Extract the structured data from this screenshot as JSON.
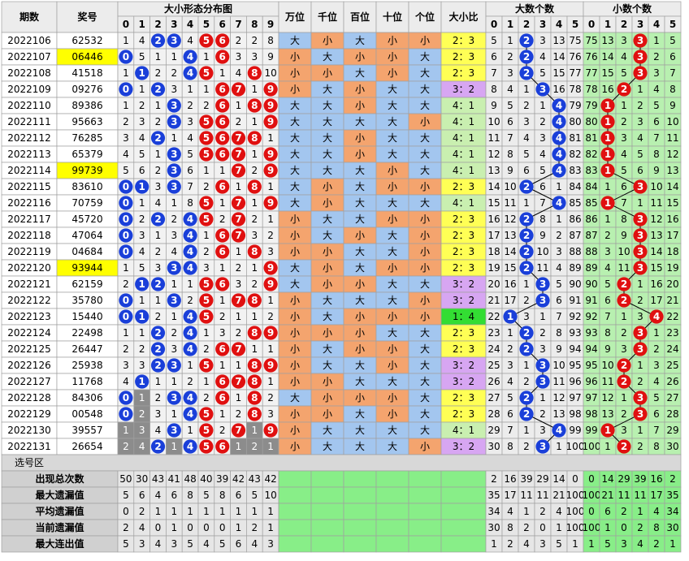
{
  "header": {
    "period": "期数",
    "number": "奖号",
    "dist": "大小形态分布图",
    "dist_cols": [
      0,
      1,
      2,
      3,
      4,
      5,
      6,
      7,
      8,
      9
    ],
    "positions": [
      "万位",
      "千位",
      "百位",
      "十位",
      "个位"
    ],
    "ratio": "大小比",
    "big": "大数个数",
    "big_cols": [
      0,
      1,
      2,
      3,
      4,
      5
    ],
    "small": "小数个数",
    "small_cols": [
      0,
      1,
      2,
      3,
      4,
      5
    ]
  },
  "rows": [
    {
      "period": "2022106",
      "number": "62532",
      "dist": [
        1,
        4,
        2,
        3,
        4,
        5,
        6,
        2,
        2,
        8
      ],
      "pos": [
        "大",
        "小",
        "大",
        "小",
        "小"
      ],
      "ratio": "2：3",
      "big": [
        5,
        1,
        2,
        3,
        13,
        75
      ],
      "big_hit": 2,
      "small": [
        75,
        13,
        3,
        3,
        1,
        5
      ],
      "small_hit": 3
    },
    {
      "period": "2022107",
      "number": "06446",
      "highlight": true,
      "dist": [
        0,
        5,
        1,
        1,
        4,
        1,
        6,
        3,
        3,
        9
      ],
      "pos": [
        "小",
        "大",
        "小",
        "小",
        "大"
      ],
      "ratio": "2：3",
      "big": [
        6,
        2,
        2,
        4,
        14,
        76
      ],
      "big_hit": 2,
      "small": [
        76,
        14,
        4,
        3,
        2,
        6
      ],
      "small_hit": 3
    },
    {
      "period": "2022108",
      "number": "41518",
      "dist": [
        1,
        1,
        2,
        2,
        4,
        5,
        1,
        4,
        8,
        10
      ],
      "pos": [
        "小",
        "小",
        "大",
        "小",
        "大"
      ],
      "ratio": "2：3",
      "big": [
        7,
        3,
        2,
        5,
        15,
        77
      ],
      "big_hit": 2,
      "small": [
        77,
        15,
        5,
        3,
        3,
        7
      ],
      "small_hit": 3
    },
    {
      "period": "2022109",
      "number": "09276",
      "dist": [
        0,
        1,
        2,
        3,
        1,
        1,
        6,
        7,
        1,
        9
      ],
      "pos": [
        "小",
        "大",
        "小",
        "大",
        "大"
      ],
      "ratio": "3：2",
      "big": [
        8,
        4,
        1,
        3,
        16,
        78
      ],
      "big_hit": 3,
      "small": [
        78,
        16,
        2,
        1,
        4,
        8
      ],
      "small_hit": 2
    },
    {
      "period": "2022110",
      "number": "89386",
      "dist": [
        1,
        2,
        1,
        3,
        2,
        2,
        6,
        1,
        8,
        9
      ],
      "pos": [
        "大",
        "大",
        "小",
        "大",
        "大"
      ],
      "ratio": "4：1",
      "big": [
        9,
        5,
        2,
        1,
        4,
        79
      ],
      "big_hit": 4,
      "small": [
        79,
        1,
        1,
        2,
        5,
        9
      ],
      "small_hit": 1
    },
    {
      "period": "2022111",
      "number": "95663",
      "dist": [
        2,
        3,
        2,
        3,
        3,
        5,
        6,
        2,
        1,
        9
      ],
      "pos": [
        "大",
        "大",
        "大",
        "大",
        "小"
      ],
      "ratio": "4：1",
      "big": [
        10,
        6,
        3,
        2,
        4,
        80
      ],
      "big_hit": 4,
      "small": [
        80,
        1,
        2,
        3,
        6,
        10
      ],
      "small_hit": 1
    },
    {
      "period": "2022112",
      "number": "76285",
      "dist": [
        3,
        4,
        2,
        1,
        4,
        5,
        6,
        7,
        8,
        1
      ],
      "pos": [
        "大",
        "大",
        "小",
        "大",
        "大"
      ],
      "ratio": "4：1",
      "big": [
        11,
        7,
        4,
        3,
        4,
        81
      ],
      "big_hit": 4,
      "small": [
        81,
        1,
        3,
        4,
        7,
        11
      ],
      "small_hit": 1
    },
    {
      "period": "2022113",
      "number": "65379",
      "dist": [
        4,
        5,
        1,
        3,
        5,
        5,
        6,
        7,
        1,
        9
      ],
      "pos": [
        "大",
        "大",
        "小",
        "大",
        "大"
      ],
      "ratio": "4：1",
      "big": [
        12,
        8,
        5,
        4,
        4,
        82
      ],
      "big_hit": 4,
      "small": [
        82,
        1,
        4,
        5,
        8,
        12
      ],
      "small_hit": 1
    },
    {
      "period": "2022114",
      "number": "99739",
      "highlight": true,
      "dist": [
        5,
        6,
        2,
        3,
        6,
        1,
        1,
        7,
        2,
        9
      ],
      "pos": [
        "大",
        "大",
        "大",
        "小",
        "大"
      ],
      "ratio": "4：1",
      "big": [
        13,
        9,
        6,
        5,
        4,
        83
      ],
      "big_hit": 4,
      "small": [
        83,
        1,
        5,
        6,
        9,
        13
      ],
      "small_hit": 1
    },
    {
      "period": "2022115",
      "number": "83610",
      "dist": [
        0,
        1,
        3,
        3,
        7,
        2,
        6,
        1,
        8,
        1
      ],
      "pos": [
        "大",
        "小",
        "大",
        "小",
        "小"
      ],
      "ratio": "2：3",
      "big": [
        14,
        10,
        2,
        6,
        1,
        84
      ],
      "big_hit": 2,
      "small": [
        84,
        1,
        6,
        3,
        10,
        14
      ],
      "small_hit": 3
    },
    {
      "period": "2022116",
      "number": "70759",
      "dist": [
        0,
        1,
        4,
        1,
        8,
        5,
        1,
        7,
        1,
        9
      ],
      "pos": [
        "大",
        "小",
        "大",
        "大",
        "大"
      ],
      "ratio": "4：1",
      "big": [
        15,
        11,
        1,
        7,
        4,
        85
      ],
      "big_hit": 4,
      "small": [
        85,
        1,
        7,
        1,
        11,
        15
      ],
      "small_hit": 1
    },
    {
      "period": "2022117",
      "number": "45720",
      "dist": [
        0,
        2,
        2,
        2,
        4,
        5,
        2,
        7,
        2,
        1
      ],
      "pos": [
        "小",
        "大",
        "大",
        "小",
        "小"
      ],
      "ratio": "2：3",
      "big": [
        16,
        12,
        2,
        8,
        1,
        86
      ],
      "big_hit": 2,
      "small": [
        86,
        1,
        8,
        3,
        12,
        16
      ],
      "small_hit": 3
    },
    {
      "period": "2022118",
      "number": "47064",
      "dist": [
        0,
        3,
        1,
        3,
        4,
        1,
        6,
        7,
        3,
        2
      ],
      "pos": [
        "小",
        "大",
        "小",
        "大",
        "小"
      ],
      "ratio": "2：3",
      "big": [
        17,
        13,
        2,
        9,
        2,
        87
      ],
      "big_hit": 2,
      "small": [
        87,
        2,
        9,
        3,
        13,
        17
      ],
      "small_hit": 3
    },
    {
      "period": "2022119",
      "number": "04684",
      "dist": [
        0,
        4,
        2,
        4,
        4,
        2,
        6,
        1,
        8,
        3
      ],
      "pos": [
        "小",
        "小",
        "大",
        "大",
        "小"
      ],
      "ratio": "2：3",
      "big": [
        18,
        14,
        2,
        10,
        3,
        88
      ],
      "big_hit": 2,
      "small": [
        88,
        3,
        10,
        3,
        14,
        18
      ],
      "small_hit": 3
    },
    {
      "period": "2022120",
      "number": "93944",
      "highlight": true,
      "dist": [
        1,
        5,
        3,
        3,
        4,
        3,
        1,
        2,
        1,
        9
      ],
      "pos": [
        "大",
        "小",
        "大",
        "小",
        "小"
      ],
      "ratio": "2：3",
      "big": [
        19,
        15,
        2,
        11,
        4,
        89
      ],
      "big_hit": 2,
      "small": [
        89,
        4,
        11,
        3,
        15,
        19
      ],
      "small_hit": 3
    },
    {
      "period": "2022121",
      "number": "62159",
      "dist": [
        2,
        1,
        2,
        1,
        1,
        5,
        6,
        3,
        2,
        9
      ],
      "pos": [
        "大",
        "小",
        "小",
        "大",
        "大"
      ],
      "ratio": "3：2",
      "big": [
        20,
        16,
        1,
        3,
        5,
        90
      ],
      "big_hit": 3,
      "small": [
        90,
        5,
        2,
        1,
        16,
        20
      ],
      "small_hit": 2
    },
    {
      "period": "2022122",
      "number": "35780",
      "dist": [
        0,
        1,
        1,
        3,
        2,
        5,
        1,
        7,
        8,
        1
      ],
      "pos": [
        "小",
        "大",
        "大",
        "大",
        "小"
      ],
      "ratio": "3：2",
      "big": [
        21,
        17,
        2,
        3,
        6,
        91
      ],
      "big_hit": 3,
      "small": [
        91,
        6,
        2,
        2,
        17,
        21
      ],
      "small_hit": 2
    },
    {
      "period": "2022123",
      "number": "15440",
      "dist": [
        0,
        1,
        2,
        1,
        4,
        5,
        2,
        1,
        1,
        2
      ],
      "pos": [
        "小",
        "大",
        "小",
        "小",
        "小"
      ],
      "ratio": "1：4",
      "big": [
        22,
        1,
        3,
        1,
        7,
        92
      ],
      "big_hit": 1,
      "small": [
        92,
        7,
        1,
        3,
        4,
        22
      ],
      "small_hit": 4
    },
    {
      "period": "2022124",
      "number": "22498",
      "dist": [
        1,
        1,
        2,
        2,
        4,
        1,
        3,
        2,
        8,
        9
      ],
      "pos": [
        "小",
        "小",
        "小",
        "大",
        "大"
      ],
      "ratio": "2：3",
      "big": [
        23,
        1,
        2,
        2,
        8,
        93
      ],
      "big_hit": 2,
      "small": [
        93,
        8,
        2,
        3,
        1,
        23
      ],
      "small_hit": 3
    },
    {
      "period": "2022125",
      "number": "26447",
      "dist": [
        2,
        2,
        2,
        3,
        4,
        2,
        6,
        7,
        1,
        1
      ],
      "pos": [
        "小",
        "大",
        "小",
        "小",
        "大"
      ],
      "ratio": "2：3",
      "big": [
        24,
        2,
        2,
        3,
        9,
        94
      ],
      "big_hit": 2,
      "small": [
        94,
        9,
        3,
        3,
        2,
        24
      ],
      "small_hit": 3
    },
    {
      "period": "2022126",
      "number": "25938",
      "dist": [
        3,
        3,
        2,
        3,
        1,
        5,
        1,
        1,
        8,
        9
      ],
      "pos": [
        "小",
        "大",
        "大",
        "小",
        "大"
      ],
      "ratio": "3：2",
      "big": [
        25,
        3,
        1,
        3,
        10,
        95
      ],
      "big_hit": 3,
      "small": [
        95,
        10,
        2,
        1,
        3,
        25
      ],
      "small_hit": 2
    },
    {
      "period": "2022127",
      "number": "11768",
      "dist": [
        4,
        1,
        1,
        1,
        2,
        1,
        6,
        7,
        8,
        1
      ],
      "pos": [
        "小",
        "小",
        "大",
        "大",
        "大"
      ],
      "ratio": "3：2",
      "big": [
        26,
        4,
        2,
        3,
        11,
        96
      ],
      "big_hit": 3,
      "small": [
        96,
        11,
        2,
        2,
        4,
        26
      ],
      "small_hit": 2
    },
    {
      "period": "2022128",
      "number": "84306",
      "dist": [
        0,
        1,
        2,
        3,
        4,
        2,
        6,
        1,
        8,
        2
      ],
      "pos": [
        "大",
        "小",
        "小",
        "小",
        "大"
      ],
      "ratio": "2：3",
      "big": [
        27,
        5,
        2,
        1,
        12,
        97
      ],
      "big_hit": 2,
      "small": [
        97,
        12,
        1,
        3,
        5,
        27
      ],
      "small_hit": 3
    },
    {
      "period": "2022129",
      "number": "00548",
      "dist": [
        0,
        2,
        3,
        1,
        4,
        5,
        1,
        2,
        8,
        3
      ],
      "pos": [
        "小",
        "小",
        "大",
        "小",
        "大"
      ],
      "ratio": "2：3",
      "big": [
        28,
        6,
        2,
        2,
        13,
        98
      ],
      "big_hit": 2,
      "small": [
        98,
        13,
        2,
        3,
        6,
        28
      ],
      "small_hit": 3
    },
    {
      "period": "2022130",
      "number": "39557",
      "dist": [
        1,
        3,
        4,
        3,
        1,
        5,
        2,
        7,
        1,
        9
      ],
      "pos": [
        "小",
        "大",
        "大",
        "大",
        "大"
      ],
      "ratio": "4：1",
      "big": [
        29,
        7,
        1,
        3,
        4,
        99
      ],
      "big_hit": 4,
      "small": [
        99,
        1,
        3,
        1,
        7,
        29
      ],
      "small_hit": 1
    },
    {
      "period": "2022131",
      "number": "26654",
      "dist": [
        2,
        4,
        2,
        1,
        4,
        5,
        6,
        1,
        2,
        1
      ],
      "pos": [
        "小",
        "大",
        "大",
        "大",
        "小"
      ],
      "ratio": "3：2",
      "big": [
        30,
        8,
        2,
        3,
        1,
        100
      ],
      "big_hit": 3,
      "small": [
        100,
        1,
        2,
        2,
        8,
        30
      ],
      "small_hit": 2
    }
  ],
  "gray_cells": [
    [
      22,
      1
    ],
    [
      23,
      1
    ],
    [
      24,
      0
    ],
    [
      24,
      1
    ],
    [
      24,
      8
    ],
    [
      25,
      0
    ],
    [
      25,
      1
    ],
    [
      25,
      3
    ],
    [
      25,
      7
    ],
    [
      25,
      8
    ],
    [
      25,
      9
    ]
  ],
  "select_label": "选号区",
  "stats": [
    {
      "label": "出现总次数",
      "dist": [
        50,
        30,
        43,
        41,
        48,
        40,
        39,
        42,
        43,
        42
      ],
      "big": [
        2,
        16,
        39,
        29,
        14,
        0
      ],
      "small": [
        0,
        14,
        29,
        39,
        16,
        2
      ]
    },
    {
      "label": "最大遗漏值",
      "dist": [
        5,
        6,
        4,
        6,
        8,
        5,
        8,
        6,
        5,
        10
      ],
      "big": [
        35,
        17,
        11,
        11,
        21,
        100
      ],
      "small": [
        100,
        21,
        11,
        11,
        17,
        35
      ]
    },
    {
      "label": "平均遗漏值",
      "dist": [
        0,
        2,
        1,
        1,
        1,
        1,
        1,
        1,
        1,
        1
      ],
      "big": [
        34,
        4,
        1,
        2,
        4,
        100
      ],
      "small": [
        0,
        6,
        2,
        1,
        4,
        34
      ]
    },
    {
      "label": "当前遗漏值",
      "dist": [
        2,
        4,
        0,
        1,
        0,
        0,
        0,
        1,
        2,
        1
      ],
      "big": [
        30,
        8,
        2,
        0,
        1,
        100
      ],
      "small": [
        100,
        1,
        0,
        2,
        8,
        30
      ]
    },
    {
      "label": "最大连出值",
      "dist": [
        5,
        3,
        4,
        3,
        5,
        4,
        5,
        6,
        4,
        3
      ],
      "big": [
        1,
        2,
        4,
        3,
        5,
        1
      ],
      "small": [
        1,
        5,
        3,
        4,
        2,
        1
      ]
    }
  ],
  "colors": {
    "pos": {
      "大": "#a3c6ef",
      "小": "#f4a46e"
    },
    "ratio": [
      "#ffffff",
      "#33dd33",
      "#ffff55",
      "#d7a6f2",
      "#c9efb0",
      "#ffffff"
    ],
    "low_ball": "#1a3fd9",
    "high_ball": "#e01010",
    "highlight": "#ffff00",
    "gray": "#8c8c8c"
  }
}
